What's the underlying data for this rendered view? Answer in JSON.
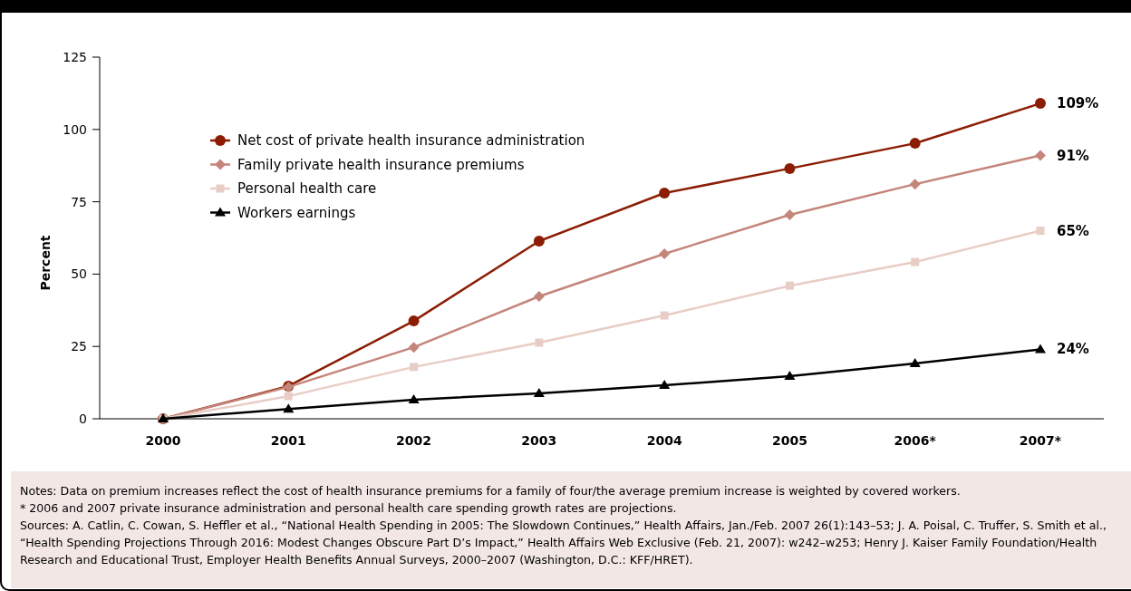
{
  "chart_data": {
    "type": "line",
    "ylabel": "Percent",
    "categories": [
      "2000",
      "2001",
      "2002",
      "2003",
      "2004",
      "2005",
      "2006*",
      "2007*"
    ],
    "ylim": [
      0,
      125
    ],
    "yticks": [
      0,
      25,
      50,
      75,
      100,
      125
    ],
    "grid": false,
    "legend": "top left",
    "line_style": "solid",
    "series": [
      {
        "name": "Net cost of private health insurance administration",
        "color": "#8c1d04",
        "marker": "circle",
        "values": [
          0,
          11.3,
          33.8,
          61.4,
          78,
          86.5,
          95.2,
          109
        ],
        "value_labels": [
          null,
          null,
          null,
          null,
          null,
          null,
          null,
          "109%"
        ]
      },
      {
        "name": "Family private health insurance premiums",
        "color": "#c4857a",
        "marker": "diamond",
        "values": [
          0,
          11,
          24.7,
          42.3,
          57,
          70.5,
          81.1,
          91
        ],
        "value_labels": [
          null,
          null,
          null,
          null,
          null,
          null,
          null,
          "91%"
        ]
      },
      {
        "name": "Personal health care",
        "color": "#e8cdc6",
        "marker": "square",
        "values": [
          0,
          7.8,
          17.9,
          26.3,
          35.7,
          46,
          54.2,
          65
        ],
        "value_labels": [
          null,
          null,
          null,
          null,
          null,
          null,
          null,
          "65%"
        ]
      },
      {
        "name": "Workers earnings",
        "color": "#000000",
        "marker": "triangle",
        "values": [
          0,
          3.4,
          6.6,
          8.8,
          11.6,
          14.7,
          19.1,
          24
        ],
        "value_labels": [
          null,
          null,
          null,
          null,
          null,
          null,
          null,
          "24%"
        ]
      }
    ],
    "annotations": [
      "Notes: Data on premium increases reflect the cost of health insurance premiums for a family of four/the average premium increase is weighted by covered workers.",
      "* 2006 and 2007 private insurance administration and personal health care spending growth rates are projections.",
      "Sources: A. Catlin, C. Cowan, S. Heffler et al., “National Health Spending in 2005: The Slowdown Continues,” Health Affairs, Jan./Feb. 2007 26(1):143–53; J. A. Poisal, C. Truffer, S. Smith et al., “Health Spending Projections Through 2016: Modest Changes Obscure Part D’s Impact,” Health Affairs Web Exclusive (Feb. 21, 2007): w242–w253; Henry J. Kaiser Family Foundation/Health Research and Educational Trust, Employer Health Benefits Annual Surveys, 2000–2007 (Washington, D.C.: KFF/HRET)."
    ]
  }
}
